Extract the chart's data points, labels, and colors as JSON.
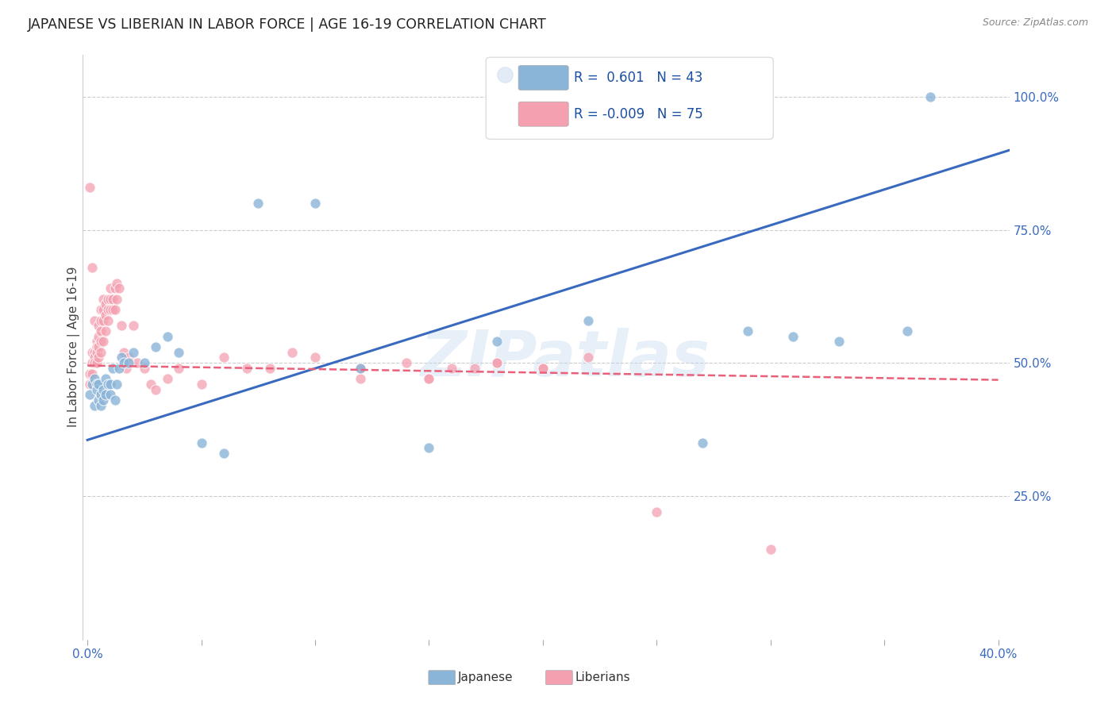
{
  "title": "JAPANESE VS LIBERIAN IN LABOR FORCE | AGE 16-19 CORRELATION CHART",
  "source": "Source: ZipAtlas.com",
  "ylabel_label": "In Labor Force | Age 16-19",
  "xlim": [
    -0.002,
    0.405
  ],
  "ylim": [
    -0.02,
    1.08
  ],
  "xtick_positions": [
    0.0,
    0.05,
    0.1,
    0.15,
    0.2,
    0.25,
    0.3,
    0.35,
    0.4
  ],
  "xticklabels": [
    "0.0%",
    "",
    "",
    "",
    "",
    "",
    "",
    "",
    "40.0%"
  ],
  "ytick_positions": [
    0.25,
    0.5,
    0.75,
    1.0
  ],
  "yticklabels": [
    "25.0%",
    "50.0%",
    "75.0%",
    "100.0%"
  ],
  "grid_color": "#cccccc",
  "background_color": "#ffffff",
  "watermark": "ZIPatlas",
  "legend_R_japanese": "0.601",
  "legend_N_japanese": "43",
  "legend_R_liberian": "-0.009",
  "legend_N_liberian": "75",
  "japanese_color": "#8ab4d8",
  "liberian_color": "#f4a0b0",
  "japanese_line_color": "#3a6abf",
  "liberian_line_color": "#e8607a",
  "japanese_scatter_x": [
    0.001,
    0.002,
    0.003,
    0.003,
    0.004,
    0.004,
    0.005,
    0.005,
    0.006,
    0.006,
    0.007,
    0.007,
    0.008,
    0.008,
    0.009,
    0.01,
    0.01,
    0.011,
    0.012,
    0.013,
    0.014,
    0.015,
    0.016,
    0.018,
    0.02,
    0.025,
    0.03,
    0.035,
    0.04,
    0.05,
    0.06,
    0.075,
    0.1,
    0.12,
    0.15,
    0.18,
    0.22,
    0.27,
    0.29,
    0.31,
    0.33,
    0.36,
    0.37
  ],
  "japanese_scatter_y": [
    0.44,
    0.46,
    0.47,
    0.42,
    0.46,
    0.45,
    0.43,
    0.46,
    0.44,
    0.42,
    0.45,
    0.43,
    0.47,
    0.44,
    0.46,
    0.46,
    0.44,
    0.49,
    0.43,
    0.46,
    0.49,
    0.51,
    0.5,
    0.5,
    0.52,
    0.5,
    0.53,
    0.55,
    0.52,
    0.35,
    0.33,
    0.8,
    0.8,
    0.49,
    0.34,
    0.54,
    0.58,
    0.35,
    0.56,
    0.55,
    0.54,
    0.56,
    1.0
  ],
  "liberian_scatter_x": [
    0.001,
    0.001,
    0.001,
    0.002,
    0.002,
    0.002,
    0.002,
    0.003,
    0.003,
    0.003,
    0.003,
    0.004,
    0.004,
    0.004,
    0.004,
    0.005,
    0.005,
    0.005,
    0.005,
    0.006,
    0.006,
    0.006,
    0.006,
    0.006,
    0.007,
    0.007,
    0.007,
    0.007,
    0.008,
    0.008,
    0.008,
    0.009,
    0.009,
    0.009,
    0.01,
    0.01,
    0.01,
    0.011,
    0.011,
    0.012,
    0.012,
    0.013,
    0.013,
    0.014,
    0.015,
    0.016,
    0.017,
    0.018,
    0.02,
    0.022,
    0.025,
    0.028,
    0.03,
    0.035,
    0.04,
    0.05,
    0.06,
    0.07,
    0.08,
    0.1,
    0.12,
    0.15,
    0.18,
    0.2,
    0.22,
    0.25,
    0.3,
    0.12,
    0.14,
    0.16,
    0.18,
    0.2,
    0.15,
    0.17,
    0.09
  ],
  "liberian_scatter_y": [
    0.48,
    0.46,
    0.83,
    0.52,
    0.5,
    0.48,
    0.68,
    0.52,
    0.51,
    0.5,
    0.58,
    0.54,
    0.53,
    0.52,
    0.5,
    0.57,
    0.55,
    0.53,
    0.51,
    0.6,
    0.58,
    0.56,
    0.54,
    0.52,
    0.62,
    0.6,
    0.58,
    0.54,
    0.61,
    0.59,
    0.56,
    0.62,
    0.6,
    0.58,
    0.64,
    0.62,
    0.6,
    0.62,
    0.6,
    0.64,
    0.6,
    0.65,
    0.62,
    0.64,
    0.57,
    0.52,
    0.49,
    0.51,
    0.57,
    0.5,
    0.49,
    0.46,
    0.45,
    0.47,
    0.49,
    0.46,
    0.51,
    0.49,
    0.49,
    0.51,
    0.49,
    0.47,
    0.5,
    0.49,
    0.51,
    0.22,
    0.15,
    0.47,
    0.5,
    0.49,
    0.5,
    0.49,
    0.47,
    0.49,
    0.52
  ],
  "japanese_line_x": [
    0.0,
    0.405
  ],
  "japanese_line_y": [
    0.355,
    0.9
  ],
  "liberian_line_x": [
    0.0,
    0.4
  ],
  "liberian_line_y": [
    0.495,
    0.468
  ]
}
